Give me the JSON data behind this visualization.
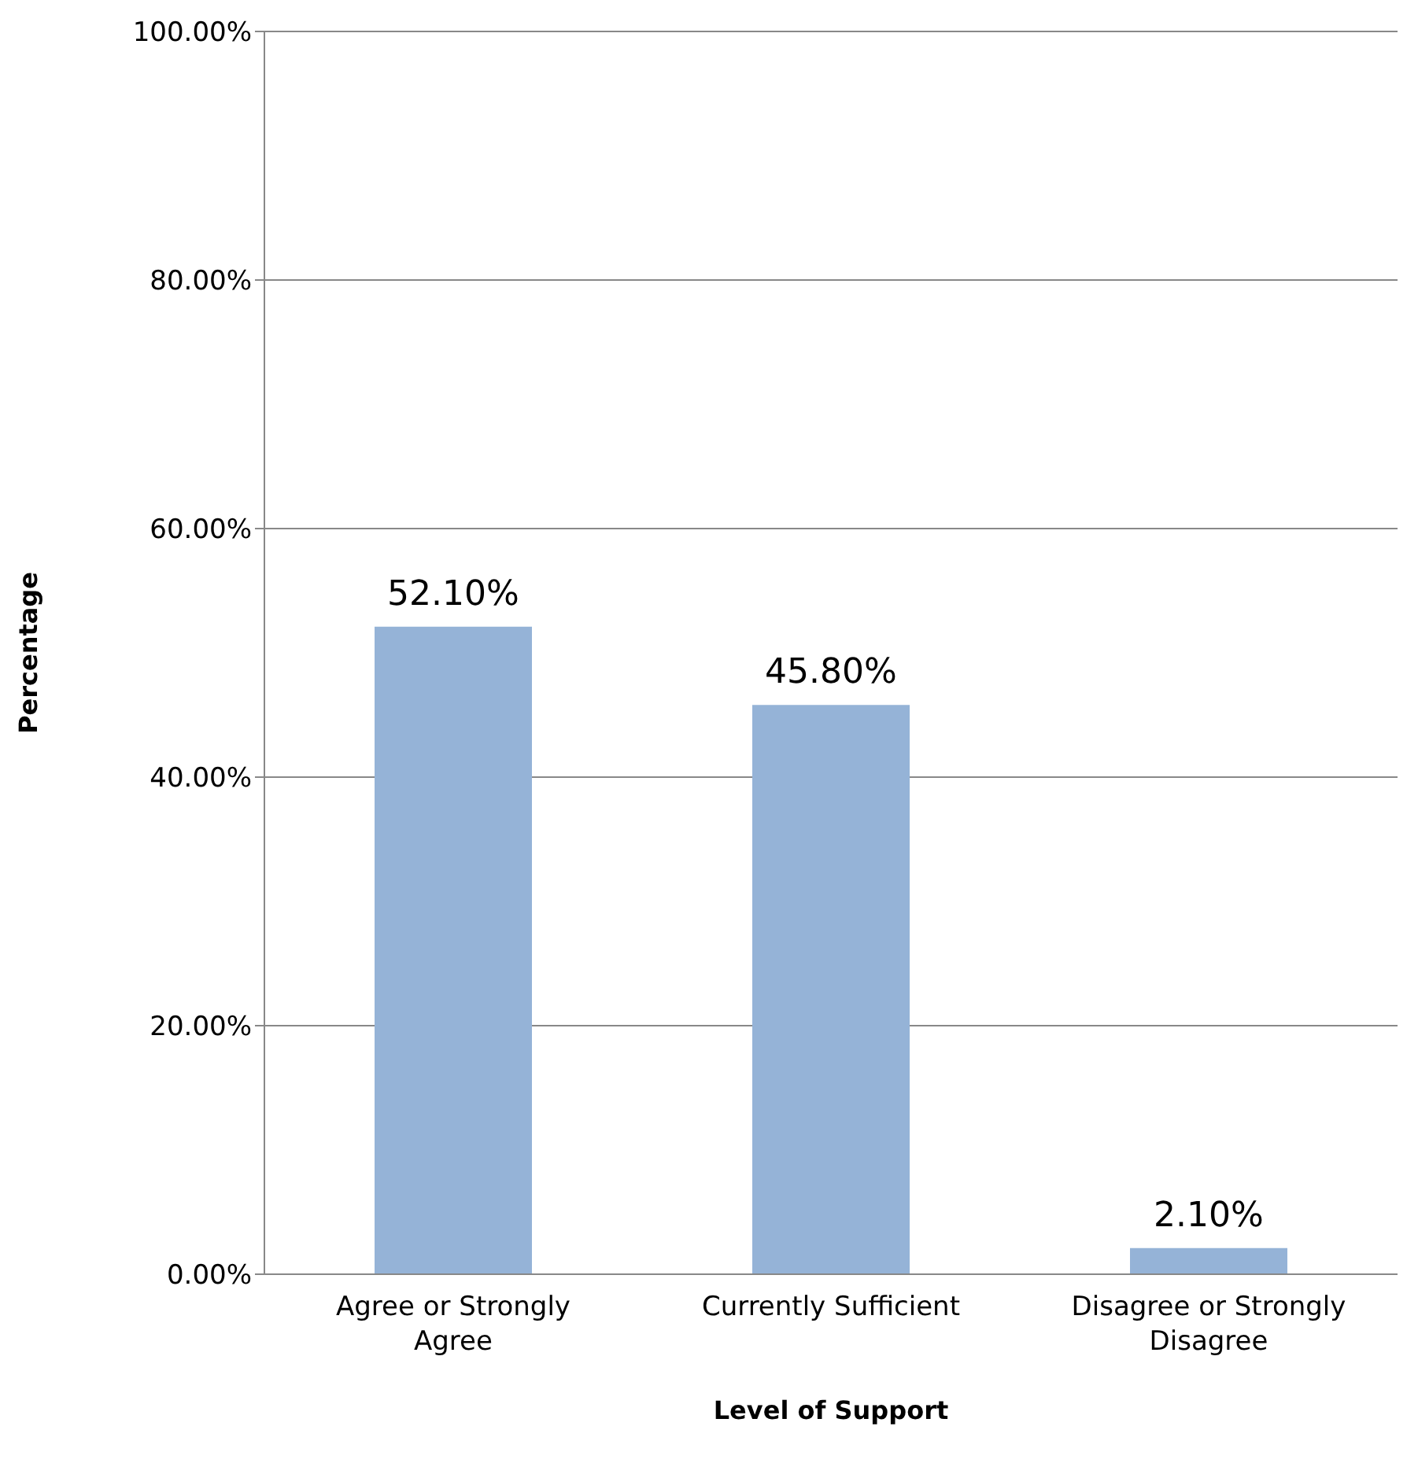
{
  "chart_data": {
    "type": "bar",
    "xlabel": "Level of Support",
    "ylabel": "Percentage",
    "categories": [
      "Agree or Strongly Agree",
      "Currently Sufficient",
      "Disagree or Strongly Disagree"
    ],
    "values": [
      52.1,
      45.8,
      2.1
    ],
    "color": "#95b3d7",
    "value_labels": [
      "52.10%",
      "45.80%",
      "2.10%"
    ],
    "ylim": [
      0,
      100
    ],
    "yticks": [
      {
        "value": 0,
        "label": "0.00%"
      },
      {
        "value": 20,
        "label": "20.00%"
      },
      {
        "value": 40,
        "label": "40.00%"
      },
      {
        "value": 60,
        "label": "60.00%"
      },
      {
        "value": 80,
        "label": "80.00%"
      },
      {
        "value": 100,
        "label": "100.00%"
      }
    ],
    "grid": "y"
  }
}
